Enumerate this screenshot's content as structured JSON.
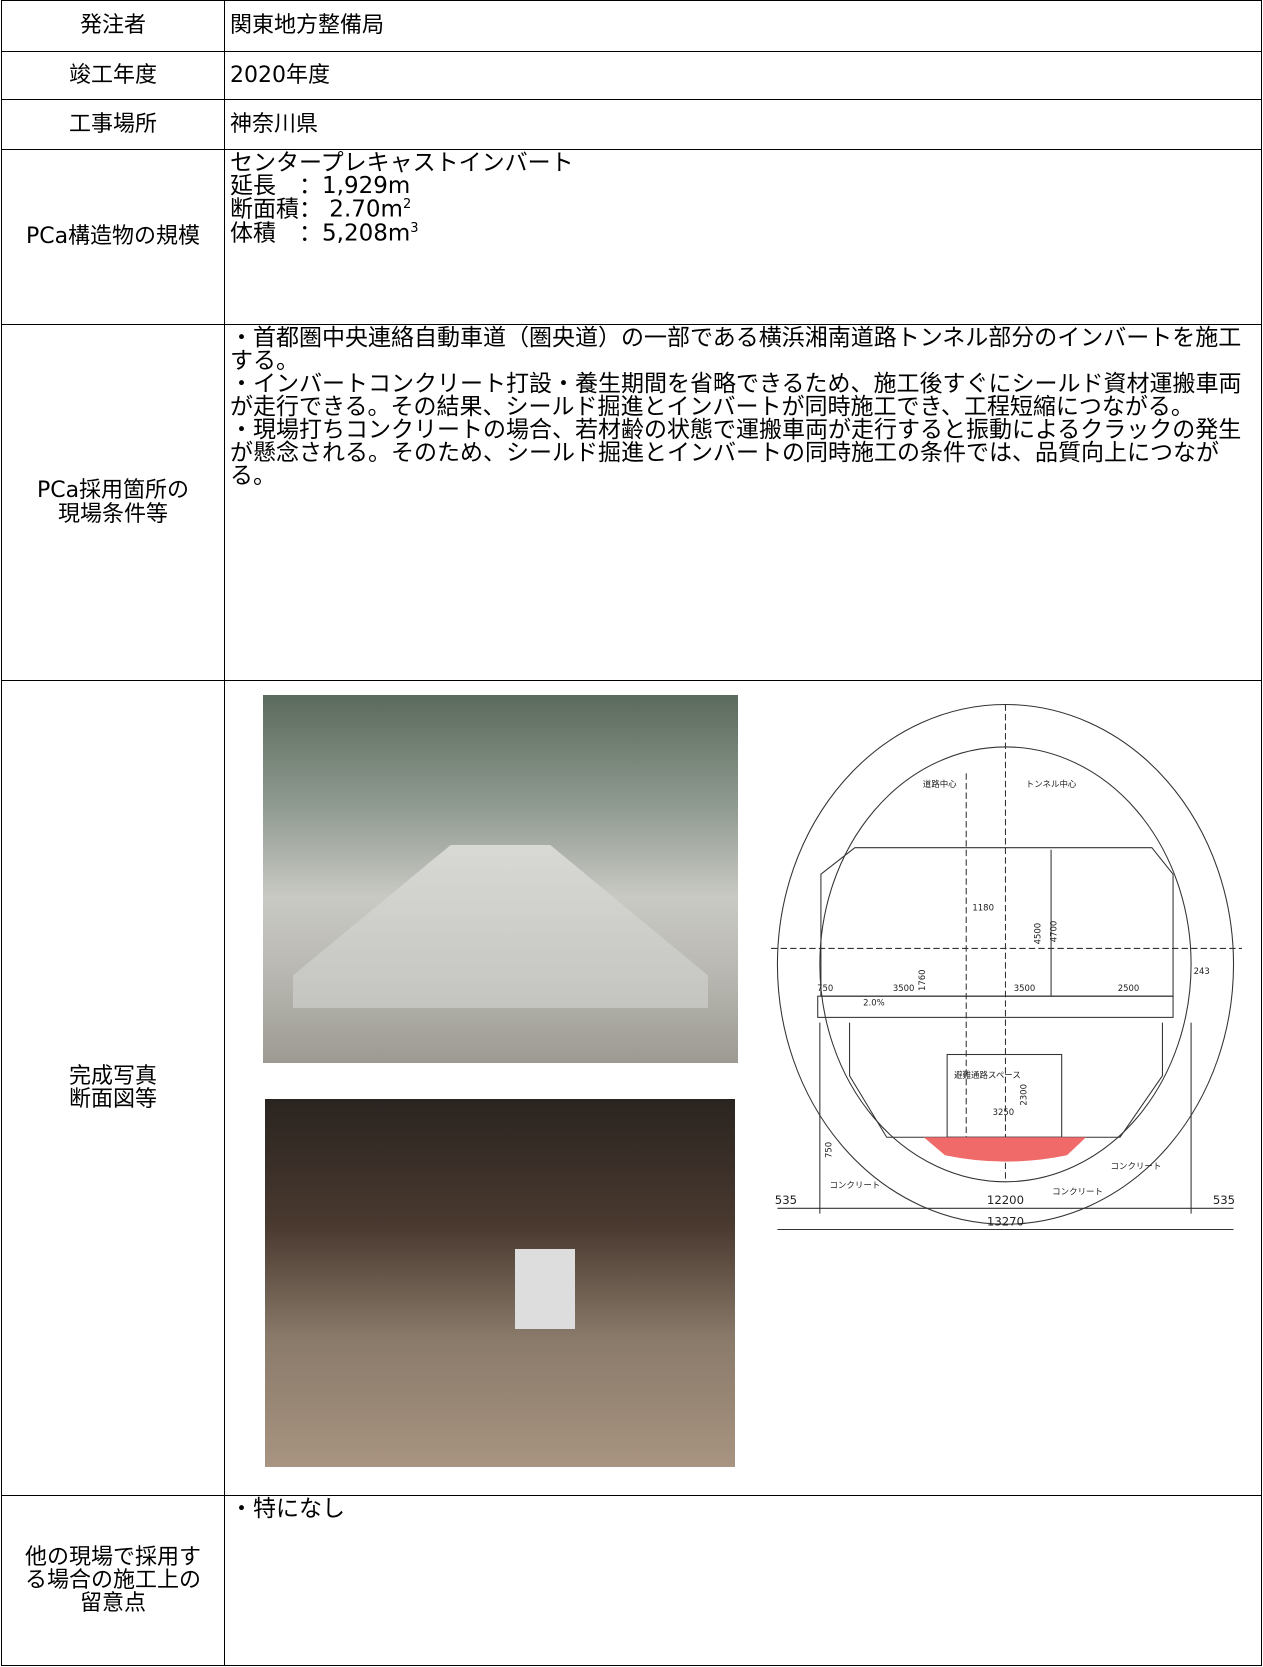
{
  "rows": [
    {
      "label": "発注者",
      "value": "関東地方整備局"
    },
    {
      "label": "竣工年度",
      "value": "2020年度"
    },
    {
      "label": "工事場所",
      "value": "神奈川県"
    },
    {
      "label": "PCa構造物の規模",
      "lines": [
        {
          "text": "センタープレキャストインバート"
        },
        {
          "text": "延長　：1,929m"
        },
        {
          "text": "断面積： 2.70m",
          "sup": "2"
        },
        {
          "text": "体積　：5,208m",
          "sup": "3"
        }
      ]
    },
    {
      "label_lines": [
        "PCa採用箇所の",
        "現場条件等"
      ],
      "paragraphs": [
        "・首都圏中央連絡自動車道（圏央道）の一部である横浜湘南道路トンネル部分のインバートを施工する。",
        "・インバートコンクリート打設・養生期間を省略できるため、施工後すぐにシールド資材運搬車両が走行できる。その結果、シールド掘進とインバートが同時施工でき、工程短縮につながる。",
        "・現場打ちコンクリートの場合、若材齢の状態で運搬車両が走行すると振動によるクラックの発生が懸念される。そのため、シールド掘進とインバートの同時施工の条件では、品質向上につながる。"
      ]
    },
    {
      "label_lines": [
        "完成写真",
        "断面図等"
      ]
    },
    {
      "label_lines": [
        "他の現場で採用す",
        "る場合の施工上の",
        "留意点"
      ],
      "paragraphs": [
        "・特になし"
      ]
    }
  ],
  "drawing": {
    "labels": [
      "道路中心",
      "トンネル中心",
      "1180",
      "4500",
      "4700",
      "750",
      "3500",
      "1760",
      "3500",
      "2500",
      "2.0%",
      "243",
      "避難通路スペース",
      "2300",
      "3250",
      "750",
      "コンクリート",
      "コンクリート",
      "コンクリート",
      "535",
      "12200",
      "535",
      "13270"
    ]
  }
}
